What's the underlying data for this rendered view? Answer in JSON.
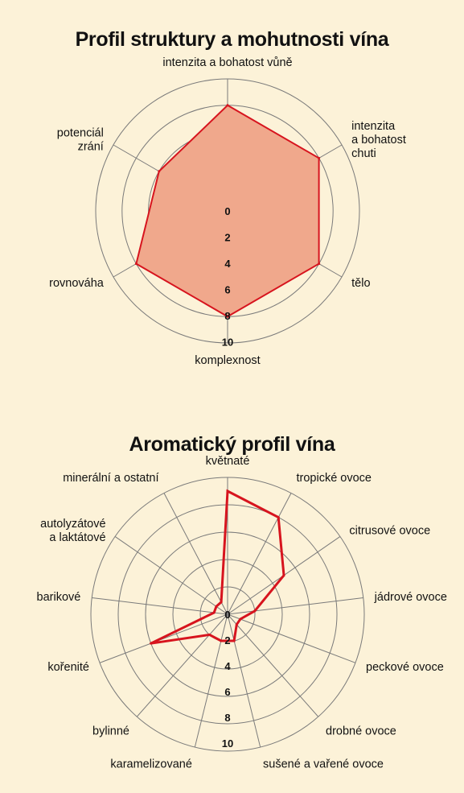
{
  "chart_data": [
    {
      "type": "radar",
      "title": "Profil struktury a mohutnosti vína",
      "axes": [
        "intenzita a bohatost vůně",
        "intenzita a bohatost chuti",
        "tělo",
        "komplexnost",
        "rovnováha",
        "potenciál zrání"
      ],
      "axis_label_lines": [
        [
          "intenzita a bohatost vůně"
        ],
        [
          "intenzita",
          "a bohatost",
          "chuti"
        ],
        [
          "tělo"
        ],
        [
          "komplexnost"
        ],
        [
          "rovnováha"
        ],
        [
          "potenciál",
          "zrání"
        ]
      ],
      "values": [
        8,
        8,
        8,
        8,
        8,
        6
      ],
      "rlim": [
        0,
        10
      ],
      "ticks": [
        "0",
        "2",
        "4",
        "6",
        "8",
        "10"
      ],
      "fill": true,
      "colors": {
        "line": "#d7141e",
        "fill": "#f0a88c",
        "grid": "#7a7a7a"
      }
    },
    {
      "type": "radar",
      "title": "Aromatický profil vína",
      "axes": [
        "květnaté",
        "tropické ovoce",
        "citrusové ovoce",
        "jádrové ovoce",
        "peckové ovoce",
        "drobné ovoce",
        "sušené a vařené ovoce",
        "karamelizované",
        "bylinné",
        "kořenité",
        "barikové",
        "autolyzátové a laktátové",
        "minerální a ostatní"
      ],
      "axis_label_lines": [
        [
          "květnaté"
        ],
        [
          "tropické ovoce"
        ],
        [
          "citrusové ovoce"
        ],
        [
          "jádrové ovoce"
        ],
        [
          "peckové ovoce"
        ],
        [
          "drobné ovoce"
        ],
        [
          "sušené a vařené ovoce"
        ],
        [
          "karamelizované"
        ],
        [
          "bylinné"
        ],
        [
          "kořenité"
        ],
        [
          "barikové"
        ],
        [
          "autolyzátové",
          "a laktátové"
        ],
        [
          "minerální a ostatní"
        ]
      ],
      "values": [
        9,
        8,
        5,
        2,
        1,
        1,
        2,
        2,
        2,
        6,
        1,
        1,
        1
      ],
      "rlim": [
        0,
        10
      ],
      "ticks": [
        "0",
        "2",
        "4",
        "6",
        "8",
        "10"
      ],
      "fill": false,
      "colors": {
        "line": "#d7141e",
        "grid": "#7a7a7a"
      }
    }
  ]
}
